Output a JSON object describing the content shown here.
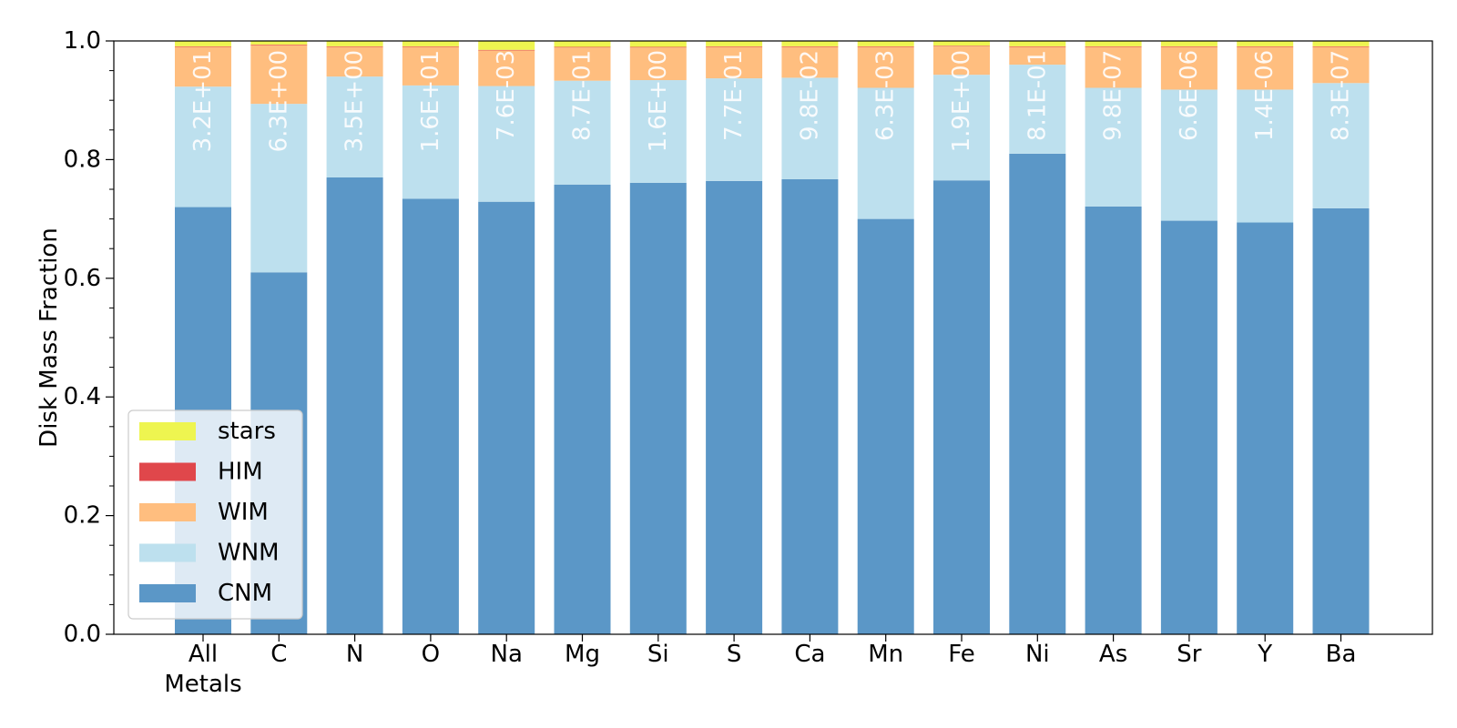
{
  "chart_data": {
    "type": "bar",
    "stacked": true,
    "categories": [
      "All\nMetals",
      "C",
      "N",
      "O",
      "Na",
      "Mg",
      "Si",
      "S",
      "Ca",
      "Mn",
      "Fe",
      "Ni",
      "As",
      "Sr",
      "Y",
      "Ba"
    ],
    "ylabel": "Disk Mass Fraction",
    "ylim": [
      0,
      1.0
    ],
    "yticks": [
      "0.0",
      "0.2",
      "0.4",
      "0.6",
      "0.8",
      "1.0"
    ],
    "grid": false,
    "legend_position": "lower-left",
    "series": [
      {
        "name": "CNM",
        "color": "#5b97c7",
        "values": [
          0.72,
          0.61,
          0.77,
          0.734,
          0.729,
          0.758,
          0.761,
          0.764,
          0.767,
          0.7,
          0.765,
          0.81,
          0.721,
          0.697,
          0.694,
          0.718
        ]
      },
      {
        "name": "WNM",
        "color": "#bde0ee",
        "values": [
          0.203,
          0.284,
          0.17,
          0.191,
          0.195,
          0.175,
          0.173,
          0.173,
          0.171,
          0.221,
          0.178,
          0.15,
          0.2,
          0.221,
          0.224,
          0.211
        ]
      },
      {
        "name": "WIM",
        "color": "#ffbe7f",
        "values": [
          0.067,
          0.099,
          0.05,
          0.065,
          0.06,
          0.056,
          0.055,
          0.053,
          0.052,
          0.069,
          0.048,
          0.03,
          0.069,
          0.072,
          0.072,
          0.061
        ]
      },
      {
        "name": "HIM",
        "color": "#e0474b",
        "values": [
          0.001,
          0.001,
          0.001,
          0.001,
          0.001,
          0.001,
          0.001,
          0.001,
          0.001,
          0.001,
          0.001,
          0.001,
          0.001,
          0.001,
          0.001,
          0.001
        ]
      },
      {
        "name": "stars",
        "color": "#eef550",
        "values": [
          0.009,
          0.006,
          0.009,
          0.009,
          0.015,
          0.01,
          0.01,
          0.009,
          0.009,
          0.009,
          0.008,
          0.009,
          0.009,
          0.009,
          0.009,
          0.009
        ]
      }
    ],
    "bar_labels": [
      "3.2E+01",
      "6.3E+00",
      "3.5E+00",
      "1.6E+01",
      "7.6E-03",
      "8.7E-01",
      "1.6E+00",
      "7.7E-01",
      "9.8E-02",
      "6.3E-03",
      "1.9E+00",
      "8.1E-01",
      "9.8E-07",
      "6.6E-06",
      "1.4E-06",
      "8.3E-07"
    ],
    "legend_order": [
      "stars",
      "HIM",
      "WIM",
      "WNM",
      "CNM"
    ]
  }
}
